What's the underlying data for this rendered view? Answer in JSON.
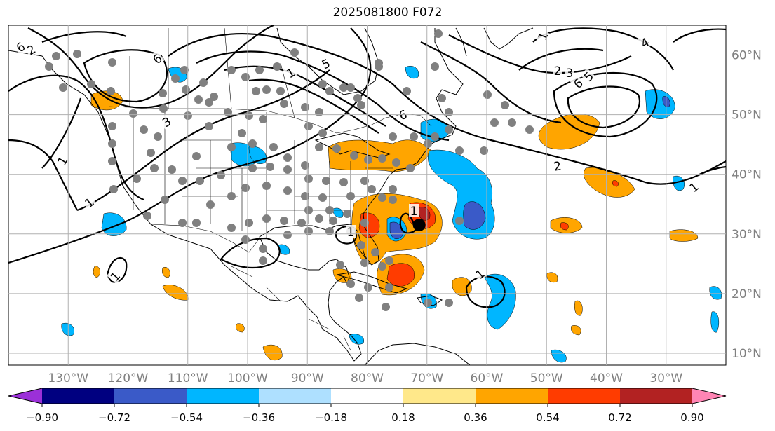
{
  "title": "2025081800 F072",
  "map": {
    "projection": "equirectangular",
    "lon_range": [
      -140,
      -20
    ],
    "lat_range": [
      8,
      65
    ],
    "longitude_labels": [
      "130°W",
      "120°W",
      "110°W",
      "100°W",
      "90°W",
      "80°W",
      "70°W",
      "60°W",
      "50°W",
      "40°W",
      "30°W"
    ],
    "latitude_labels": [
      "60°N",
      "50°N",
      "40°N",
      "30°N",
      "20°N",
      "10°N"
    ],
    "gridlines": true,
    "storm_center": {
      "lon": -71.3,
      "lat": 31.5
    },
    "contour_labels": [
      "6",
      "2",
      "3",
      "6",
      "1",
      "5",
      "1",
      "1",
      "6",
      "4",
      "1",
      "2",
      "3",
      "6",
      "5",
      "2",
      "1",
      "1",
      "1",
      "1",
      "1"
    ]
  },
  "colorbar": {
    "tick_labels": [
      "−0.90",
      "−0.72",
      "−0.54",
      "−0.36",
      "−0.18",
      "0.18",
      "0.36",
      "0.54",
      "0.72",
      "0.90"
    ],
    "colors": [
      "#9b30d8",
      "#000080",
      "#3a5ac8",
      "#00b6ff",
      "#aee0ff",
      "#ffffff",
      "#ffe88a",
      "#ffa500",
      "#ff3c00",
      "#b22222",
      "#ff85b4"
    ],
    "extend": "both"
  },
  "colors": {
    "orange": "#ffa500",
    "red": "#ff3c00",
    "darkred": "#b22222",
    "blue": "#00b6ff",
    "royal": "#3a5ac8",
    "dots": "#808080",
    "grid": "#b0b0b0",
    "axis_text": "#808080"
  }
}
